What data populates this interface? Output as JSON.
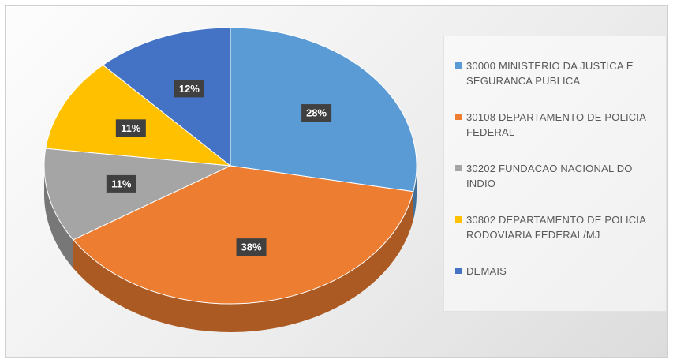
{
  "chart_data": {
    "type": "pie",
    "categories": [
      "30000 MINISTERIO DA JUSTICA E SEGURANCA PUBLICA",
      "30108 DEPARTAMENTO DE POLICIA FEDERAL",
      "30202 FUNDACAO NACIONAL DO INDIO",
      "30802 DEPARTAMENTO DE POLICIA RODOVIARIA FEDERAL/MJ",
      "DEMAIS"
    ],
    "values": [
      28,
      38,
      11,
      11,
      12
    ],
    "value_labels": [
      "28%",
      "38%",
      "11%",
      "11%",
      "12%"
    ],
    "colors": [
      "#5b9bd5",
      "#ed7d31",
      "#a5a5a5",
      "#ffc000",
      "#4472c4"
    ],
    "legend": "right"
  }
}
